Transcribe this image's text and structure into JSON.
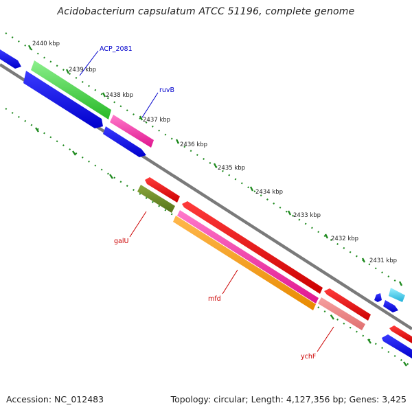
{
  "title": "Acidobacterium capsulatum ATCC 51196, complete genome",
  "accession_text": "Accession: NC_012483",
  "stats_text": "Topology: circular; Length: 4,127,356 bp; Genes: 3,425",
  "ticks": [
    "2440 kbp",
    "2439 kbp",
    "2438 kbp",
    "2437 kbp",
    "2436 kbp",
    "2435 kbp",
    "2434 kbp",
    "2433 kbp",
    "2432 kbp",
    "2431 kbp"
  ],
  "gene_labels": {
    "acp": "ACP_2081",
    "ruvb": "ruvB",
    "galu": "galU",
    "mfd": "mfd",
    "ychf": "ychF"
  },
  "colors": {
    "backbone": "#7a7a7a",
    "tick_dots": "#1f8a1f",
    "forward_label": "#0000cc",
    "reverse_label": "#cc0000"
  }
}
